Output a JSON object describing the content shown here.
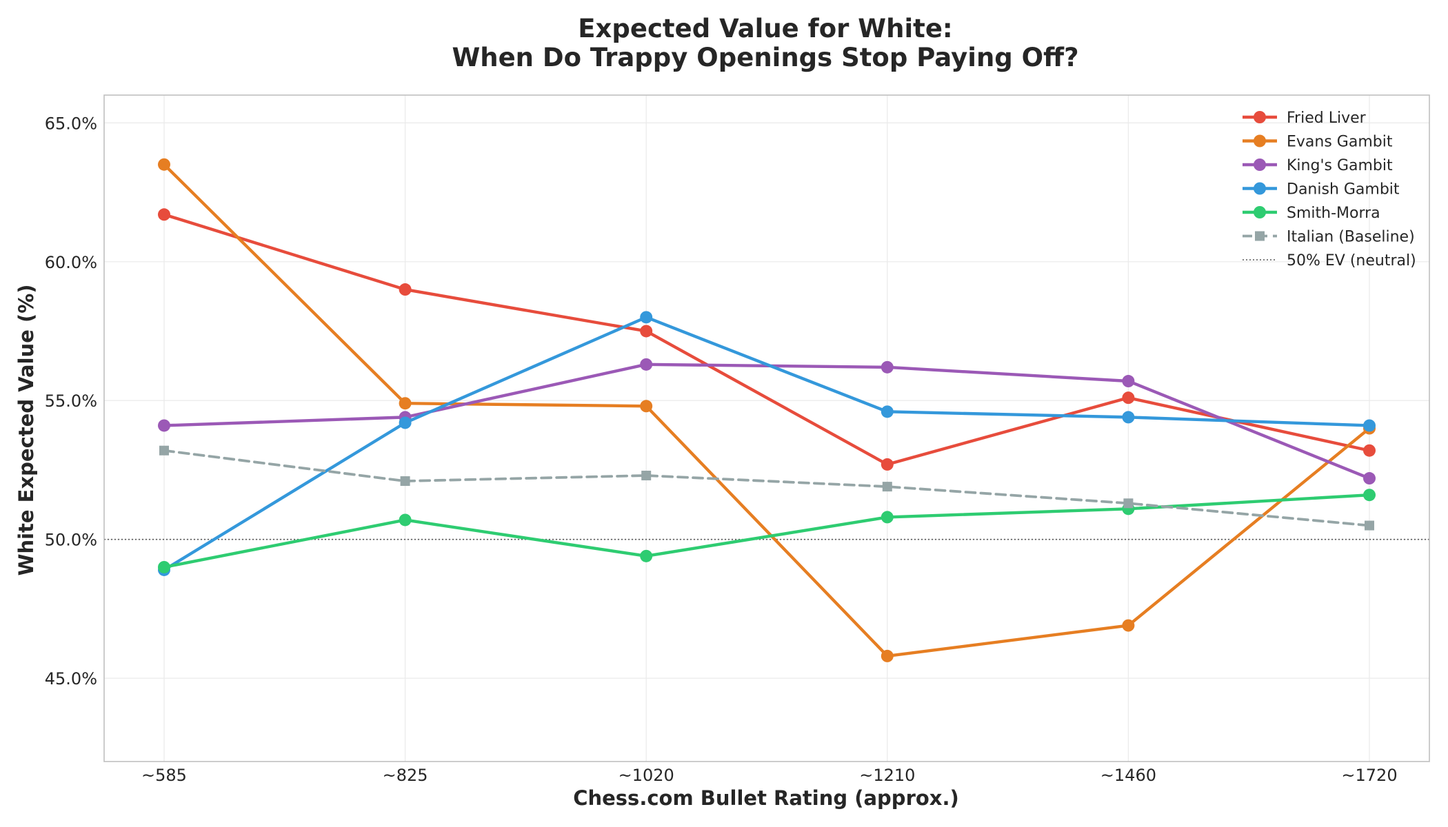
{
  "chart_data": {
    "type": "line",
    "title": [
      "Expected Value for White:",
      "When Do Trappy Openings Stop Paying Off?"
    ],
    "xlabel": "Chess.com Bullet Rating (approx.)",
    "ylabel": "White Expected Value (%)",
    "categories": [
      "~585",
      "~825",
      "~1020",
      "~1210",
      "~1460",
      "~1720"
    ],
    "ylim": [
      42.0,
      66.0
    ],
    "yticks": [
      45.0,
      50.0,
      55.0,
      60.0,
      65.0
    ],
    "ytick_labels": [
      "45.0%",
      "50.0%",
      "55.0%",
      "60.0%",
      "65.0%"
    ],
    "grid": true,
    "legend_position": "top-right",
    "series": [
      {
        "name": "Fried Liver",
        "color": "#e74c3c",
        "style": "solid",
        "marker": "circle",
        "values": [
          61.7,
          59.0,
          57.5,
          52.7,
          55.1,
          53.2
        ]
      },
      {
        "name": "Evans Gambit",
        "color": "#e67e22",
        "style": "solid",
        "marker": "circle",
        "values": [
          63.5,
          54.9,
          54.8,
          45.8,
          46.9,
          54.0
        ]
      },
      {
        "name": "King's Gambit",
        "color": "#9b59b6",
        "style": "solid",
        "marker": "circle",
        "values": [
          54.1,
          54.4,
          56.3,
          56.2,
          55.7,
          52.2
        ]
      },
      {
        "name": "Danish Gambit",
        "color": "#3498db",
        "style": "solid",
        "marker": "circle",
        "values": [
          48.9,
          54.2,
          58.0,
          54.6,
          54.4,
          54.1
        ]
      },
      {
        "name": "Smith-Morra",
        "color": "#2ecc71",
        "style": "solid",
        "marker": "circle",
        "values": [
          49.0,
          50.7,
          49.4,
          50.8,
          51.1,
          51.6
        ]
      },
      {
        "name": "Italian (Baseline)",
        "color": "#95a5a6",
        "style": "dashed",
        "marker": "square",
        "values": [
          53.2,
          52.1,
          52.3,
          51.9,
          51.3,
          50.5
        ]
      }
    ],
    "reference_line": {
      "name": "50% EV (neutral)",
      "value": 50.0,
      "color": "#555555",
      "style": "dotted"
    }
  }
}
